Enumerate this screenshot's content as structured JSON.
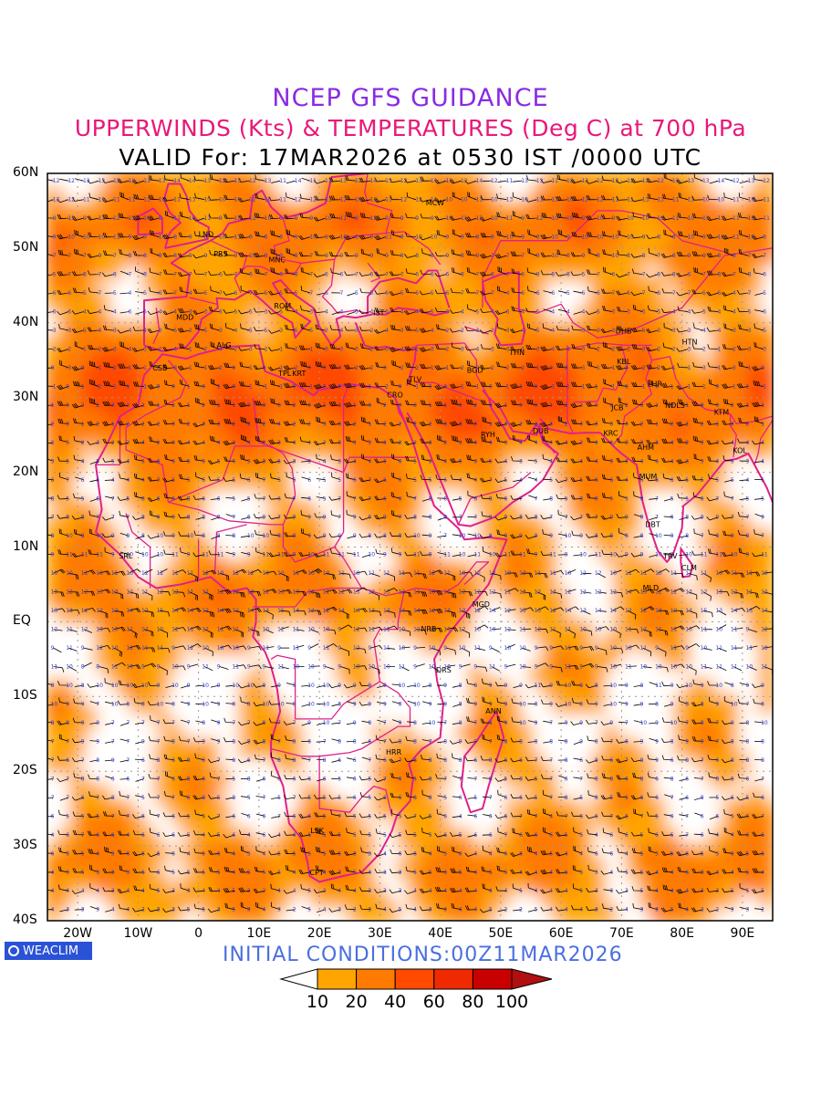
{
  "header": {
    "line1": "NCEP GFS GUIDANCE",
    "line2": "UPPERWINDS (Kts) & TEMPERATURES (Deg C) at 700 hPa",
    "line3": "VALID For: 17MAR2026 at 0530 IST /0000 UTC"
  },
  "axes": {
    "lat_labels": [
      "60N",
      "50N",
      "40N",
      "30N",
      "20N",
      "10N",
      "EQ",
      "10S",
      "20S",
      "30S",
      "40S"
    ],
    "lon_labels": [
      "20W",
      "10W",
      "0",
      "10E",
      "20E",
      "30E",
      "40E",
      "50E",
      "60E",
      "70E",
      "80E",
      "90E"
    ]
  },
  "stations": [
    {
      "id": "MCW",
      "lon": 37.6,
      "lat": 55.7
    },
    {
      "id": "LND",
      "lon": 0.0,
      "lat": 51.5
    },
    {
      "id": "PRS",
      "lon": 2.5,
      "lat": 48.9
    },
    {
      "id": "MNC",
      "lon": 11.6,
      "lat": 48.1
    },
    {
      "id": "ROM",
      "lon": 12.5,
      "lat": 41.9
    },
    {
      "id": "MDD",
      "lon": -3.7,
      "lat": 40.4
    },
    {
      "id": "IST",
      "lon": 28.9,
      "lat": 41.0
    },
    {
      "id": "ALG",
      "lon": 3.0,
      "lat": 36.7
    },
    {
      "id": "CSB",
      "lon": -7.6,
      "lat": 33.6
    },
    {
      "id": "TPL",
      "lon": 13.2,
      "lat": 32.9
    },
    {
      "id": "KRT",
      "lon": 15.5,
      "lat": 32.9
    },
    {
      "id": "TLV",
      "lon": 34.8,
      "lat": 32.1
    },
    {
      "id": "CRO",
      "lon": 31.2,
      "lat": 30.0
    },
    {
      "id": "BGD",
      "lon": 44.4,
      "lat": 33.3
    },
    {
      "id": "THN",
      "lon": 51.4,
      "lat": 35.7
    },
    {
      "id": "DHB",
      "lon": 69.0,
      "lat": 38.6
    },
    {
      "id": "KBL",
      "lon": 69.2,
      "lat": 34.5
    },
    {
      "id": "HTN",
      "lon": 80.0,
      "lat": 37.1
    },
    {
      "id": "LHR",
      "lon": 74.3,
      "lat": 31.5
    },
    {
      "id": "NDLS",
      "lon": 77.2,
      "lat": 28.6
    },
    {
      "id": "KTM",
      "lon": 85.3,
      "lat": 27.7
    },
    {
      "id": "JCB",
      "lon": 68.3,
      "lat": 28.3
    },
    {
      "id": "RYH",
      "lon": 46.7,
      "lat": 24.7
    },
    {
      "id": "DUB",
      "lon": 55.3,
      "lat": 25.2
    },
    {
      "id": "KRC",
      "lon": 67.0,
      "lat": 24.9
    },
    {
      "id": "AHM",
      "lon": 72.6,
      "lat": 23.0
    },
    {
      "id": "KOL",
      "lon": 88.4,
      "lat": 22.6
    },
    {
      "id": "MUM",
      "lon": 72.9,
      "lat": 19.1
    },
    {
      "id": "DBT",
      "lon": 73.9,
      "lat": 12.7
    },
    {
      "id": "TRV",
      "lon": 76.9,
      "lat": 8.5
    },
    {
      "id": "CLM",
      "lon": 79.9,
      "lat": 6.9
    },
    {
      "id": "SRL",
      "lon": -13.2,
      "lat": 8.5
    },
    {
      "id": "MGD",
      "lon": 45.3,
      "lat": 2.0
    },
    {
      "id": "MLD",
      "lon": 73.5,
      "lat": 4.2
    },
    {
      "id": "NRB",
      "lon": 36.8,
      "lat": -1.3
    },
    {
      "id": "DRS",
      "lon": 39.3,
      "lat": -6.8
    },
    {
      "id": "ANN",
      "lon": 47.5,
      "lat": -12.3
    },
    {
      "id": "HRR",
      "lon": 31.0,
      "lat": -17.8
    },
    {
      "id": "LSK",
      "lon": 18.5,
      "lat": -28.3
    },
    {
      "id": "CPT",
      "lon": 18.4,
      "lat": -33.9
    }
  ],
  "legend": {
    "labels": [
      "10",
      "20",
      "40",
      "60",
      "80",
      "100"
    ],
    "colors": [
      "#ffa400",
      "#ff7a00",
      "#ff4a00",
      "#f02a00",
      "#c80000"
    ]
  },
  "footer": {
    "brand": "WEACLIM",
    "initial_conditions": "INITIAL  CONDITIONS:00Z11MAR2026"
  },
  "colors": {
    "coast": "#e0208a",
    "barb": "#000000",
    "temp_label": "#3040d0"
  }
}
